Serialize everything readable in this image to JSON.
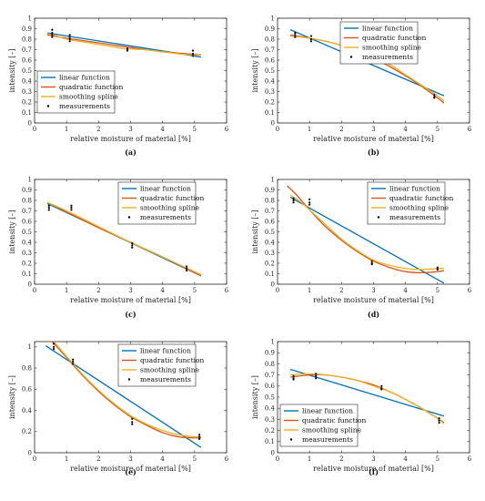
{
  "colors": {
    "linear": "#0072BD",
    "quadratic": "#D95319",
    "spline": "#EDB120",
    "measurement": "#000000",
    "axis": "#262626",
    "legend_box": "#262626"
  },
  "chart_data": [
    {
      "type": "line",
      "label": "(a)",
      "xlabel": "relative moisture of material [%]",
      "ylabel": "intensity [–]",
      "xlim": [
        0,
        6
      ],
      "ylim": [
        0,
        1
      ],
      "xticks": [
        "0",
        "1",
        "2",
        "3",
        "4",
        "5",
        "6"
      ],
      "yticks": [
        "0",
        "0.1",
        "0.2",
        "0.3",
        "0.4",
        "0.5",
        "0.6",
        "0.7",
        "0.8",
        "0.9",
        "1"
      ],
      "legend_position": "bottom-left",
      "legend": [
        "linear function",
        "quadratic function",
        "smoothing spline",
        "measurements"
      ],
      "series": [
        {
          "name": "linear function",
          "x": [
            0.4,
            5.2
          ],
          "y": [
            0.86,
            0.63
          ]
        },
        {
          "name": "quadratic function",
          "x": [
            0.4,
            1,
            2,
            3,
            4,
            5,
            5.2
          ],
          "y": [
            0.84,
            0.81,
            0.765,
            0.72,
            0.68,
            0.655,
            0.652
          ]
        },
        {
          "name": "smoothing spline",
          "x": [
            0.4,
            0.6,
            1,
            1.6,
            2.2,
            2.8,
            3.4,
            4,
            4.5,
            5,
            5.2
          ],
          "y": [
            0.85,
            0.84,
            0.8,
            0.77,
            0.74,
            0.71,
            0.7,
            0.68,
            0.66,
            0.65,
            0.65
          ]
        }
      ],
      "measurements": [
        [
          0.55,
          0.89
        ],
        [
          0.55,
          0.86
        ],
        [
          0.55,
          0.84
        ],
        [
          0.55,
          0.82
        ],
        [
          1.1,
          0.84
        ],
        [
          1.1,
          0.82
        ],
        [
          1.1,
          0.8
        ],
        [
          1.1,
          0.78
        ],
        [
          2.9,
          0.71
        ],
        [
          2.9,
          0.7
        ],
        [
          2.9,
          0.69
        ],
        [
          4.95,
          0.69
        ],
        [
          4.95,
          0.66
        ],
        [
          4.95,
          0.64
        ]
      ]
    },
    {
      "type": "line",
      "label": "(b)",
      "xlabel": "relative moisture of material [%]",
      "ylabel": "intensity [–]",
      "xlim": [
        0,
        6
      ],
      "ylim": [
        0,
        1
      ],
      "xticks": [
        "0",
        "1",
        "2",
        "3",
        "4",
        "5",
        "6"
      ],
      "yticks": [
        "0",
        "0.1",
        "0.2",
        "0.3",
        "0.4",
        "0.5",
        "0.6",
        "0.7",
        "0.8",
        "0.9",
        "1"
      ],
      "legend_position": "top-right",
      "legend": [
        "linear function",
        "quadratic function",
        "smoothing spline",
        "measurements"
      ],
      "series": [
        {
          "name": "linear function",
          "x": [
            0.4,
            5.2
          ],
          "y": [
            0.89,
            0.26
          ]
        },
        {
          "name": "quadratic function",
          "x": [
            0.4,
            1,
            1.5,
            2,
            2.5,
            3,
            3.5,
            4,
            4.5,
            5,
            5.2
          ],
          "y": [
            0.84,
            0.81,
            0.78,
            0.74,
            0.69,
            0.62,
            0.54,
            0.45,
            0.35,
            0.24,
            0.19
          ]
        },
        {
          "name": "smoothing spline",
          "x": [
            0.4,
            1,
            1.5,
            2,
            2.5,
            3,
            3.5,
            4,
            4.5,
            5,
            5.2
          ],
          "y": [
            0.83,
            0.81,
            0.78,
            0.74,
            0.7,
            0.64,
            0.56,
            0.46,
            0.36,
            0.26,
            0.21
          ]
        }
      ],
      "measurements": [
        [
          0.55,
          0.86
        ],
        [
          0.55,
          0.84
        ],
        [
          0.55,
          0.82
        ],
        [
          1.05,
          0.83
        ],
        [
          1.05,
          0.8
        ],
        [
          1.05,
          0.78
        ],
        [
          2.75,
          0.71
        ],
        [
          2.75,
          0.68
        ],
        [
          2.75,
          0.66
        ],
        [
          4.9,
          0.27
        ],
        [
          4.9,
          0.25
        ],
        [
          4.9,
          0.24
        ]
      ]
    },
    {
      "type": "line",
      "label": "(c)",
      "xlabel": "relative moisture of material [%]",
      "ylabel": "intensity [–]",
      "xlim": [
        0,
        6
      ],
      "ylim": [
        0,
        1
      ],
      "xticks": [
        "0",
        "1",
        "2",
        "3",
        "4",
        "5",
        "6"
      ],
      "yticks": [
        "0",
        "0.1",
        "0.2",
        "0.3",
        "0.4",
        "0.5",
        "0.6",
        "0.7",
        "0.8",
        "0.9",
        "1"
      ],
      "legend_position": "top-right",
      "legend": [
        "linear function",
        "quadratic function",
        "smoothing spline",
        "measurements"
      ],
      "series": [
        {
          "name": "linear function",
          "x": [
            0.4,
            5.2
          ],
          "y": [
            0.77,
            0.08
          ]
        },
        {
          "name": "quadratic function",
          "x": [
            0.4,
            1,
            2,
            3,
            4,
            5,
            5.2
          ],
          "y": [
            0.78,
            0.69,
            0.54,
            0.4,
            0.26,
            0.11,
            0.08
          ]
        },
        {
          "name": "smoothing spline",
          "x": [
            0.4,
            1,
            2,
            3,
            4,
            5,
            5.2
          ],
          "y": [
            0.78,
            0.7,
            0.55,
            0.4,
            0.26,
            0.12,
            0.09
          ]
        }
      ],
      "measurements": [
        [
          0.45,
          0.75
        ],
        [
          0.45,
          0.73
        ],
        [
          0.45,
          0.71
        ],
        [
          1.15,
          0.75
        ],
        [
          1.15,
          0.73
        ],
        [
          1.15,
          0.71
        ],
        [
          3.05,
          0.39
        ],
        [
          3.05,
          0.37
        ],
        [
          3.05,
          0.35
        ],
        [
          4.75,
          0.17
        ],
        [
          4.75,
          0.15
        ],
        [
          4.75,
          0.13
        ]
      ]
    },
    {
      "type": "line",
      "label": "(d)",
      "xlabel": "relative moisture of material [%]",
      "ylabel": "intensity [–]",
      "xlim": [
        0,
        6
      ],
      "ylim": [
        0,
        1
      ],
      "xticks": [
        "0",
        "1",
        "2",
        "3",
        "4",
        "5",
        "6"
      ],
      "yticks": [
        "0",
        "0.1",
        "0.2",
        "0.3",
        "0.4",
        "0.5",
        "0.6",
        "0.7",
        "0.8",
        "0.9",
        "1"
      ],
      "legend_position": "top-right",
      "legend": [
        "linear function",
        "quadratic function",
        "smoothing spline",
        "measurements"
      ],
      "series": [
        {
          "name": "linear function",
          "x": [
            0.4,
            5.2
          ],
          "y": [
            0.83,
            0.01
          ]
        },
        {
          "name": "quadratic function",
          "x": [
            0.3,
            0.6,
            1,
            1.5,
            2,
            2.5,
            3,
            3.5,
            4,
            4.5,
            5,
            5.2
          ],
          "y": [
            0.94,
            0.85,
            0.71,
            0.55,
            0.42,
            0.31,
            0.22,
            0.16,
            0.12,
            0.11,
            0.12,
            0.13
          ]
        },
        {
          "name": "smoothing spline",
          "x": [
            0.4,
            0.7,
            1,
            1.5,
            2,
            2.5,
            3,
            3.5,
            4,
            4.5,
            5,
            5.2
          ],
          "y": [
            0.85,
            0.79,
            0.71,
            0.57,
            0.43,
            0.32,
            0.23,
            0.18,
            0.15,
            0.14,
            0.15,
            0.15
          ]
        }
      ],
      "measurements": [
        [
          0.5,
          0.82
        ],
        [
          0.5,
          0.8
        ],
        [
          0.5,
          0.78
        ],
        [
          1.0,
          0.81
        ],
        [
          1.0,
          0.78
        ],
        [
          1.0,
          0.76
        ],
        [
          2.95,
          0.22
        ],
        [
          2.95,
          0.2
        ],
        [
          2.95,
          0.19
        ],
        [
          5.0,
          0.16
        ],
        [
          5.0,
          0.15
        ],
        [
          5.0,
          0.14
        ]
      ]
    },
    {
      "type": "line",
      "label": "(e)",
      "xlabel": "relative moisture of material [%]",
      "ylabel": "intensity [–]",
      "xlim": [
        0,
        6
      ],
      "ylim": [
        0,
        1.05
      ],
      "xticks": [
        "0",
        "1",
        "2",
        "3",
        "4",
        "5",
        "6"
      ],
      "yticks": [
        "0",
        "0.2",
        "0.4",
        "0.6",
        "0.8",
        "1"
      ],
      "ytick_values": [
        0,
        0.2,
        0.4,
        0.6,
        0.8,
        1
      ],
      "legend_position": "top-right",
      "legend": [
        "linear function",
        "quadratic function",
        "smoothing spline",
        "measurements"
      ],
      "series": [
        {
          "name": "linear function",
          "x": [
            0.35,
            5.2
          ],
          "y": [
            1.01,
            0.05
          ]
        },
        {
          "name": "quadratic function",
          "x": [
            0.55,
            1,
            1.5,
            2,
            2.5,
            3,
            3.5,
            4,
            4.5,
            5,
            5.2
          ],
          "y": [
            1.05,
            0.9,
            0.73,
            0.58,
            0.45,
            0.34,
            0.26,
            0.19,
            0.15,
            0.14,
            0.14
          ]
        },
        {
          "name": "smoothing spline",
          "x": [
            0.6,
            1,
            1.5,
            2,
            2.5,
            3,
            3.5,
            4,
            4.5,
            5,
            5.2
          ],
          "y": [
            1.05,
            0.91,
            0.74,
            0.59,
            0.46,
            0.35,
            0.27,
            0.21,
            0.17,
            0.15,
            0.15
          ]
        }
      ],
      "measurements": [
        [
          0.6,
          1.03
        ],
        [
          0.6,
          1.0
        ],
        [
          0.6,
          0.98
        ],
        [
          1.2,
          0.88
        ],
        [
          1.2,
          0.86
        ],
        [
          1.2,
          0.84
        ],
        [
          3.05,
          0.32
        ],
        [
          3.05,
          0.29
        ],
        [
          3.05,
          0.27
        ],
        [
          5.15,
          0.17
        ],
        [
          5.15,
          0.15
        ],
        [
          5.15,
          0.13
        ]
      ]
    },
    {
      "type": "line",
      "label": "(f)",
      "xlabel": "relative moisture of material [%]",
      "ylabel": "intensity [–]",
      "xlim": [
        0,
        6
      ],
      "ylim": [
        0,
        1
      ],
      "xticks": [
        "0",
        "1",
        "2",
        "3",
        "4",
        "5",
        "6"
      ],
      "yticks": [
        "0",
        "0.1",
        "0.2",
        "0.3",
        "0.4",
        "0.5",
        "0.6",
        "0.7",
        "0.8",
        "0.9",
        "1"
      ],
      "legend_position": "bottom-left",
      "legend": [
        "linear function",
        "quadratic function",
        "smoothing spline",
        "measurements"
      ],
      "series": [
        {
          "name": "linear function",
          "x": [
            0.4,
            5.2
          ],
          "y": [
            0.75,
            0.33
          ]
        },
        {
          "name": "quadratic function",
          "x": [
            0.4,
            1,
            1.5,
            2,
            2.5,
            3,
            3.5,
            4,
            4.5,
            5,
            5.2
          ],
          "y": [
            0.68,
            0.7,
            0.7,
            0.68,
            0.65,
            0.61,
            0.55,
            0.48,
            0.4,
            0.31,
            0.27
          ]
        },
        {
          "name": "smoothing spline",
          "x": [
            0.4,
            1,
            1.5,
            2,
            2.5,
            3,
            3.5,
            4,
            4.5,
            5,
            5.2
          ],
          "y": [
            0.7,
            0.71,
            0.7,
            0.68,
            0.65,
            0.6,
            0.55,
            0.48,
            0.4,
            0.31,
            0.26
          ]
        }
      ],
      "measurements": [
        [
          0.5,
          0.69
        ],
        [
          0.5,
          0.67
        ],
        [
          0.5,
          0.66
        ],
        [
          1.2,
          0.71
        ],
        [
          1.2,
          0.69
        ],
        [
          1.2,
          0.67
        ],
        [
          3.25,
          0.6
        ],
        [
          3.25,
          0.58
        ],
        [
          3.25,
          0.57
        ],
        [
          5.05,
          0.31
        ],
        [
          5.05,
          0.29
        ],
        [
          5.05,
          0.27
        ]
      ]
    }
  ]
}
